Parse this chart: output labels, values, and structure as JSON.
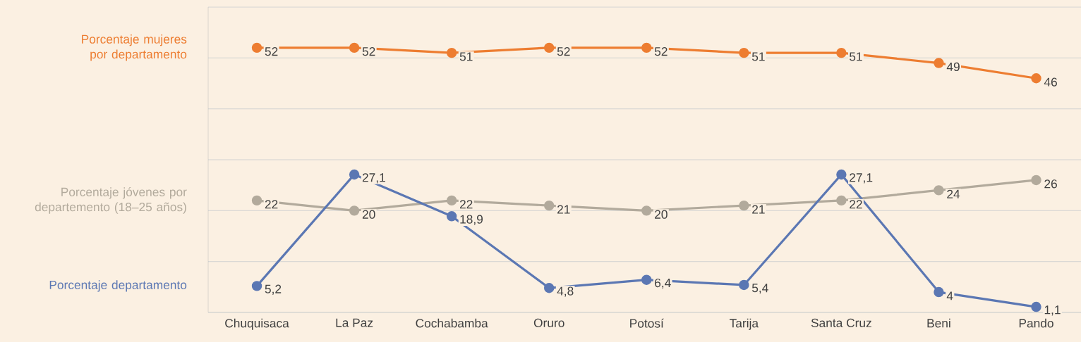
{
  "chart_data": {
    "type": "line",
    "categories": [
      "Chuquisaca",
      "La Paz",
      "Cochabamba",
      "Oruro",
      "Potosí",
      "Tarija",
      "Santa Cruz",
      "Beni",
      "Pando"
    ],
    "series": [
      {
        "name": "Porcentaje mujeres por departamento",
        "color": "#ed7d31",
        "values": [
          52,
          52,
          51,
          52,
          52,
          51,
          51,
          49,
          46
        ],
        "value_labels": [
          "52",
          "52",
          "51",
          "52",
          "52",
          "51",
          "51",
          "49",
          "46"
        ]
      },
      {
        "name": "Porcentaje jóvenes por departemento (18–25 años)",
        "color": "#b2aa9c",
        "values": [
          22,
          20,
          22,
          21,
          20,
          21,
          22,
          24,
          26
        ],
        "value_labels": [
          "22",
          "20",
          "22",
          "21",
          "20",
          "21",
          "22",
          "24",
          "26"
        ]
      },
      {
        "name": "Porcentaje departamento",
        "color": "#5b77b3",
        "values": [
          5.2,
          27.1,
          18.9,
          4.8,
          6.4,
          5.4,
          27.1,
          4,
          1.1
        ],
        "value_labels": [
          "5,2",
          "27,1",
          "18,9",
          "4,8",
          "6,4",
          "5,4",
          "27,1",
          "4",
          "1,1"
        ]
      }
    ],
    "ylim": [
      0,
      60
    ],
    "yticks": [
      {
        "value": 0,
        "label": null
      },
      {
        "value": 10,
        "label": null
      },
      {
        "value": 20,
        "label": null
      },
      {
        "value": 30,
        "label": null
      },
      {
        "value": 40,
        "label": null
      },
      {
        "value": 50,
        "label": null
      },
      {
        "value": 60,
        "label": null
      }
    ],
    "grid": "y",
    "marker": "circle",
    "line_style": "solid",
    "tick_labels": "x"
  }
}
